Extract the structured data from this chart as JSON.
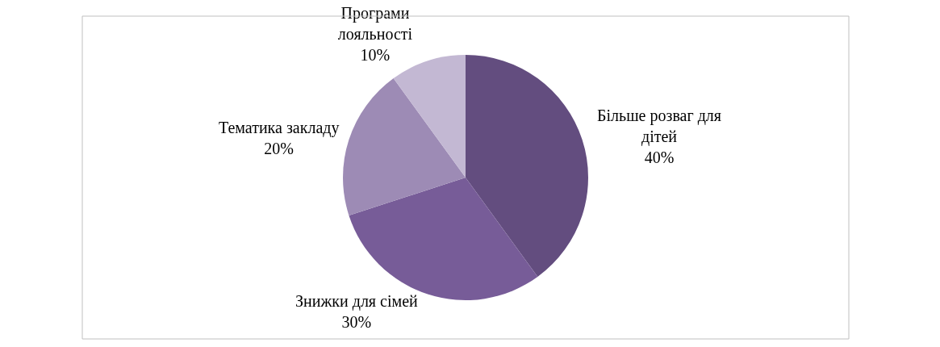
{
  "chart_data": {
    "type": "pie",
    "categories": [
      "Більше розваг для дітей",
      "Знижки для сімей",
      "Тематика закладу",
      "Програми лояльності"
    ],
    "values": [
      40,
      30,
      20,
      10
    ],
    "value_labels": [
      "40%",
      "30%",
      "20%",
      "10%"
    ],
    "colors": [
      "#634d7f",
      "#775c98",
      "#9d8bb5",
      "#c3b8d3"
    ],
    "legend": false
  }
}
